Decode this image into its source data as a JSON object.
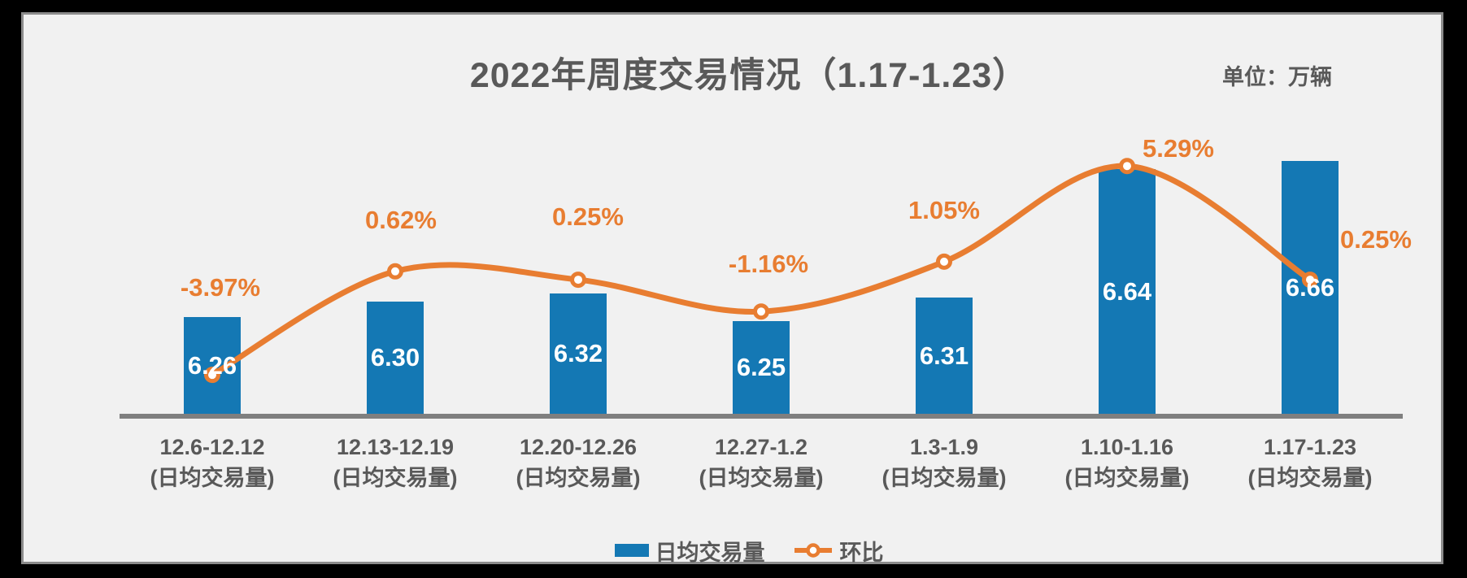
{
  "chart_data": {
    "type": "combo: bar + smoothed line",
    "title": "2022年周度交易情况（1.17-1.23）",
    "unit_label": "单位：万辆",
    "categories": [
      "12.6-12.12",
      "12.13-12.19",
      "12.20-12.26",
      "12.27-1.2",
      "1.3-1.9",
      "1.10-1.16",
      "1.17-1.23"
    ],
    "category_subtitle": "(日均交易量)",
    "series": [
      {
        "name": "日均交易量",
        "type": "bar",
        "color": "#1478B4",
        "label_color": "#FFFFFF",
        "values": [
          6.26,
          6.3,
          6.32,
          6.25,
          6.31,
          6.64,
          6.66
        ],
        "value_labels": [
          "6.26",
          "6.30",
          "6.32",
          "6.25",
          "6.31",
          "6.64",
          "6.66"
        ]
      },
      {
        "name": "环比",
        "type": "line",
        "color": "#E87D31",
        "marker": "circle-white-fill-orange-ring",
        "values_pct": [
          -3.97,
          0.62,
          0.25,
          -1.16,
          1.05,
          5.29,
          0.25
        ],
        "value_labels": [
          "-3.97%",
          "0.62%",
          "0.25%",
          "-1.16%",
          "1.05%",
          "5.29%",
          "0.25%"
        ]
      }
    ],
    "legend": {
      "position": "bottom-center",
      "items": [
        "日均交易量",
        "环比"
      ]
    },
    "axes": {
      "x_axis_visible": true,
      "x_axis_color": "#7F7F7F",
      "y_axis_visible": false,
      "gridlines": false
    },
    "colors": {
      "panel_background": "#F1F1F1",
      "outer_frame": "#000000",
      "text": "#595959"
    }
  }
}
